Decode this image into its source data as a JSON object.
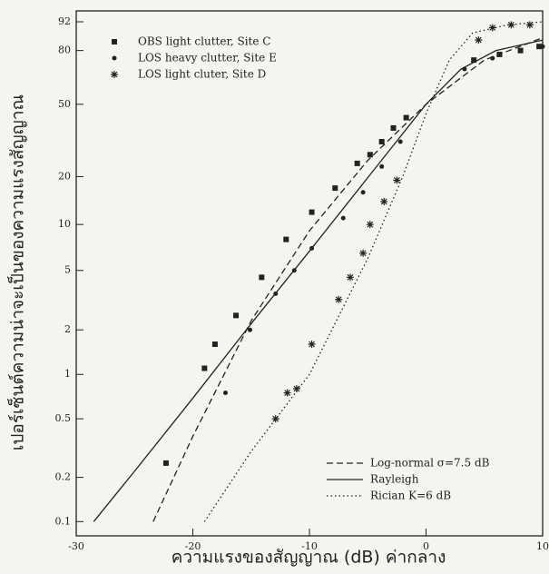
{
  "chart_data": {
    "type": "line",
    "xlabel": "ความแรงของสัญญาณ (dB) ค่ากลาง",
    "ylabel": "เปอร์เซ็นต์ความน่าจะเป็นของความแรงสัญญาณ",
    "xlim": [
      -30,
      10
    ],
    "xticks": [
      -30,
      -20,
      -10,
      0,
      10
    ],
    "ylim": [
      0.08,
      95
    ],
    "yticks": [
      0.1,
      0.2,
      0.5,
      1,
      2,
      5,
      10,
      20,
      50,
      80,
      92
    ],
    "yscale": "rayleigh",
    "color": "#222222",
    "series": [
      {
        "name": "OBS light clutter, Site C",
        "marker": "square",
        "x": [
          -22.3,
          -19,
          -18.1,
          -16.3,
          -14.1,
          -12,
          -9.8,
          -7.8,
          -5.9,
          -4.8,
          -3.8,
          -2.8,
          -1.7,
          4.1,
          6.3,
          8.1,
          9.7
        ],
        "values": [
          0.25,
          1.1,
          1.6,
          2.5,
          4.5,
          8,
          12,
          17,
          24,
          27,
          32,
          38,
          43,
          75,
          78,
          80,
          82
        ]
      },
      {
        "name": "LOS heavy clutter, Site E",
        "marker": "dot",
        "x": [
          -17.2,
          -15.1,
          -12.9,
          -11.3,
          -9.8,
          -7.1,
          -5.4,
          -3.8,
          -2.2,
          3.3,
          5.7,
          8.1,
          10
        ],
        "values": [
          0.75,
          2,
          3.5,
          5,
          7,
          11,
          16,
          23,
          32,
          70,
          76,
          80,
          82
        ]
      },
      {
        "name": "LOS light cluter, Site D",
        "marker": "star",
        "x": [
          -12.9,
          -11.9,
          -11.1,
          -9.8,
          -7.5,
          -6.5,
          -5.4,
          -4.8,
          -3.6,
          -2.5,
          4.5,
          5.7,
          7.3,
          8.9
        ],
        "values": [
          0.5,
          0.75,
          0.8,
          1.6,
          3.2,
          4.5,
          6.5,
          10,
          14,
          19,
          85,
          90,
          91,
          91
        ]
      },
      {
        "name": "Log-normal σ=7.5 dB",
        "style": "dashed",
        "x": [
          -23.4,
          -20,
          -15,
          -10,
          -5,
          0,
          5,
          10
        ],
        "values": [
          0.1,
          0.38,
          2.3,
          9.1,
          25,
          50,
          75,
          86
        ]
      },
      {
        "name": "Rayleigh",
        "style": "solid",
        "x": [
          -28.5,
          -25,
          -20,
          -15,
          -10,
          -5,
          0,
          3,
          6,
          10
        ],
        "values": [
          0.1,
          0.22,
          0.69,
          2.2,
          6.7,
          19.7,
          50,
          70,
          80,
          85
        ]
      },
      {
        "name": "Rician K=6 dB",
        "style": "dotted",
        "x": [
          -19,
          -15,
          -10,
          -5,
          -2,
          0,
          2,
          4,
          7,
          10
        ],
        "values": [
          0.1,
          0.3,
          1,
          6,
          20,
          45,
          75,
          88,
          91,
          92
        ]
      }
    ]
  }
}
